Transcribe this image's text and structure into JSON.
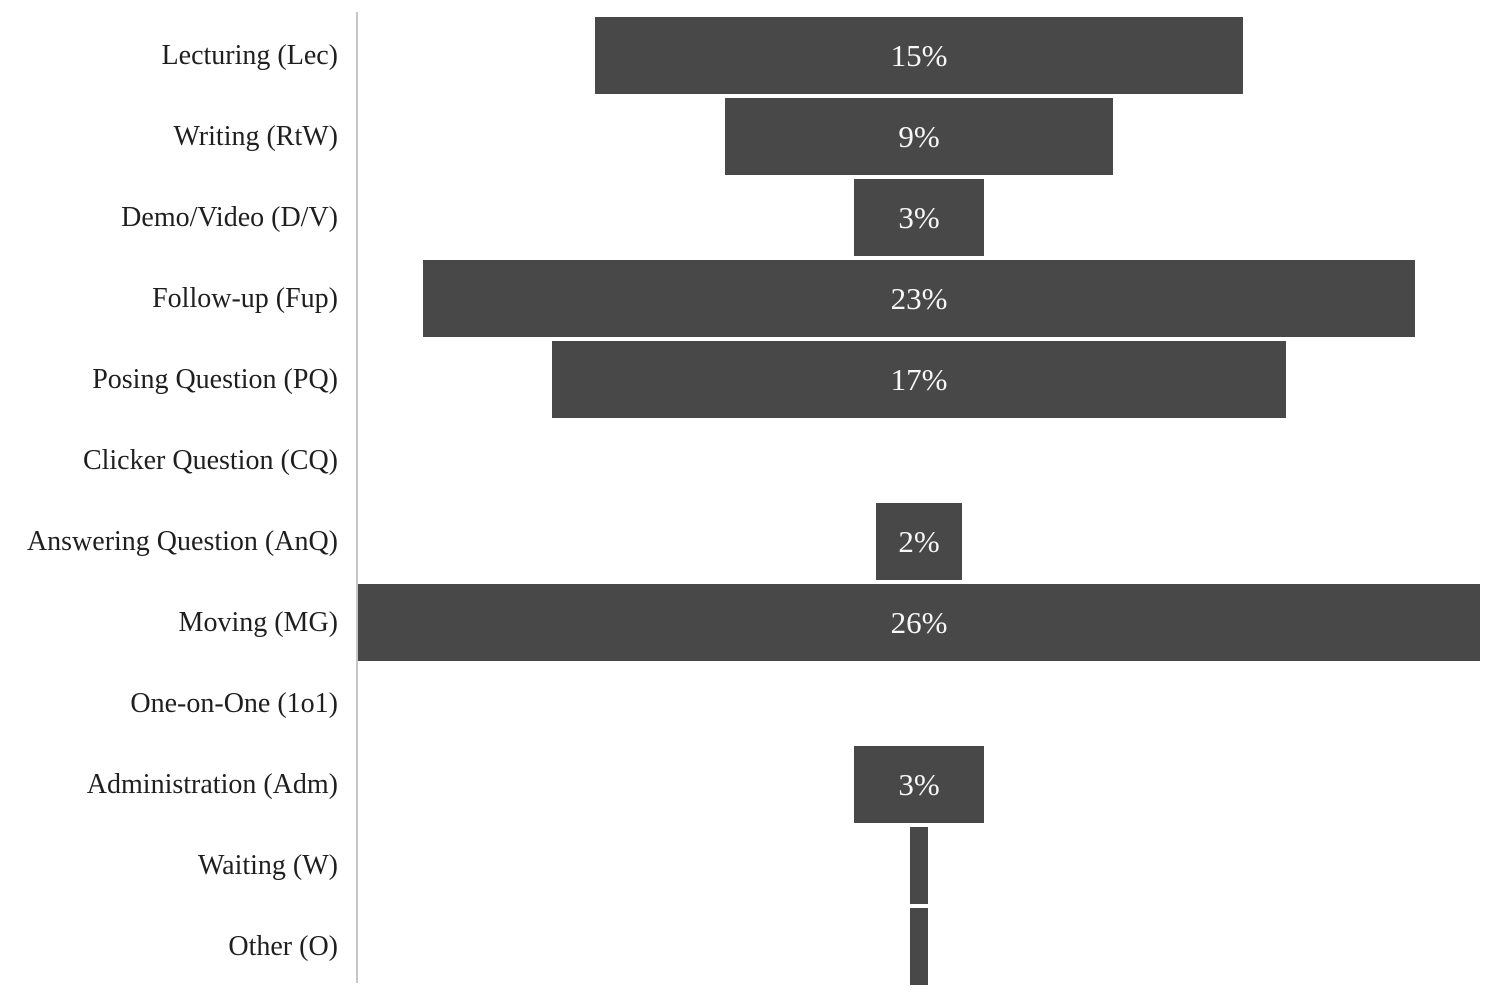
{
  "chart_data": {
    "type": "bar",
    "variant": "horizontal-centered-funnel",
    "title": "",
    "xlabel": "",
    "ylabel": "",
    "legend_position": "none",
    "gridlines": false,
    "xlim": [
      0,
      26
    ],
    "categories": [
      "Lecturing (Lec)",
      "Writing (RtW)",
      "Demo/Video (D/V)",
      "Follow-up (Fup)",
      "Posing Question (PQ)",
      "Clicker Question (CQ)",
      "Answering Question (AnQ)",
      "Moving (MG)",
      "One-on-One (1o1)",
      "Administration (Adm)",
      "Waiting (W)",
      "Other (O)"
    ],
    "values": [
      15,
      9,
      3,
      23,
      17,
      0,
      2,
      26,
      0,
      3,
      0.4,
      0.4
    ],
    "bar_labels": [
      "15%",
      "9%",
      "3%",
      "23%",
      "17%",
      "",
      "2%",
      "26%",
      "",
      "3%",
      "",
      ""
    ],
    "bar_color": "#484848",
    "bar_label_text_color": "#f7f7f7",
    "category_text_color": "#1f1f1f",
    "axis_line_color": "#c6c6c6",
    "background_color": "#ffffff"
  }
}
